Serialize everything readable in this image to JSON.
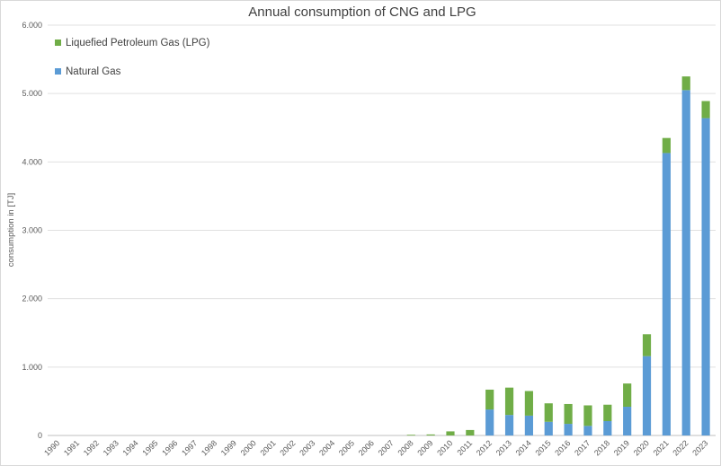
{
  "chart_data": {
    "type": "bar",
    "stacked": true,
    "title": "Annual consumption of CNG and LPG",
    "xlabel": "",
    "ylabel": "consumption in [TJ]",
    "ylim": [
      0,
      6000
    ],
    "yticks": [
      0,
      1000,
      2000,
      3000,
      4000,
      5000,
      6000
    ],
    "ytick_labels": [
      "0",
      "1.000",
      "2.000",
      "3.000",
      "4.000",
      "5.000",
      "6.000"
    ],
    "grid": true,
    "legend_position": "top-left",
    "categories": [
      "1990",
      "1991",
      "1992",
      "1993",
      "1994",
      "1995",
      "1996",
      "1997",
      "1998",
      "1999",
      "2000",
      "2001",
      "2002",
      "2003",
      "2004",
      "2005",
      "2006",
      "2007",
      "2008",
      "2009",
      "2010",
      "2011",
      "2012",
      "2013",
      "2014",
      "2015",
      "2016",
      "2017",
      "2018",
      "2019",
      "2020",
      "2021",
      "2022",
      "2023"
    ],
    "series": [
      {
        "name": "Natural Gas",
        "color": "#5b9bd5",
        "values": [
          0,
          0,
          0,
          0,
          0,
          0,
          0,
          0,
          0,
          0,
          0,
          0,
          0,
          0,
          0,
          0,
          0,
          0,
          0,
          0,
          0,
          0,
          380,
          300,
          290,
          200,
          170,
          140,
          210,
          420,
          1160,
          4130,
          5050,
          4640
        ]
      },
      {
        "name": "Liquefied Petroleum Gas (LPG)",
        "color": "#70ad47",
        "values": [
          0,
          0,
          0,
          0,
          0,
          0,
          0,
          0,
          0,
          0,
          0,
          0,
          0,
          0,
          0,
          0,
          0,
          0,
          10,
          15,
          60,
          80,
          290,
          400,
          360,
          270,
          290,
          300,
          240,
          340,
          320,
          220,
          200,
          250
        ]
      }
    ],
    "legend": [
      {
        "name": "Liquefied Petroleum Gas (LPG)",
        "color": "#70ad47"
      },
      {
        "name": "Natural Gas",
        "color": "#5b9bd5"
      }
    ]
  }
}
